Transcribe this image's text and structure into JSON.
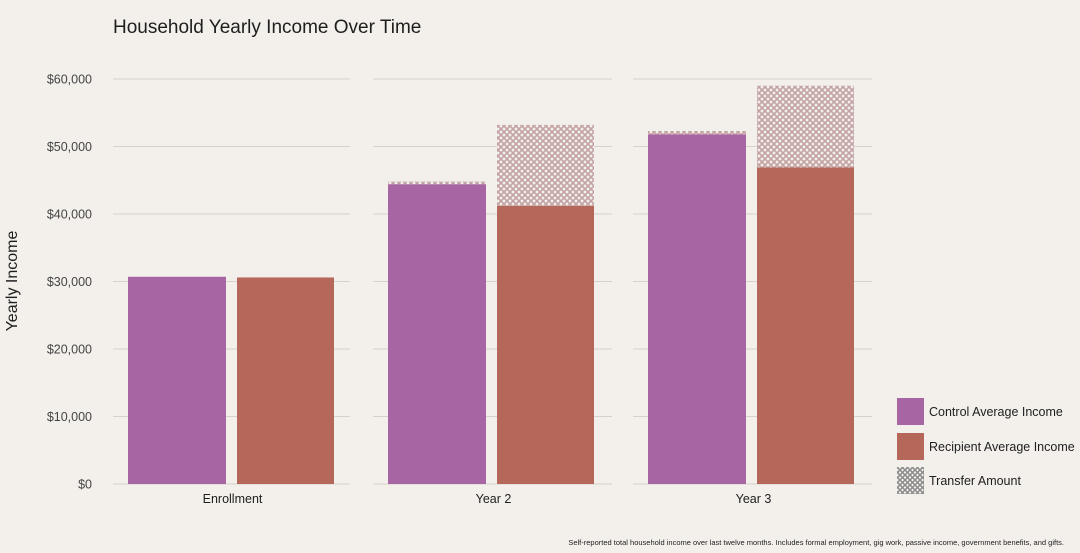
{
  "chart_data": {
    "type": "bar",
    "title": "Household Yearly Income Over Time",
    "ylabel": "Yearly Income",
    "xlabel": "",
    "footnote": "Self-reported total household income over last twelve months. Includes formal employment, gig work, passive income, government benefits, and gifts.",
    "ylim": [
      0,
      60000
    ],
    "yticks": [
      0,
      10000,
      20000,
      30000,
      40000,
      50000,
      60000
    ],
    "ytick_labels": [
      "$0",
      "$10,000",
      "$20,000",
      "$30,000",
      "$40,000",
      "$50,000",
      "$60,000"
    ],
    "categories": [
      "Enrollment",
      "Year 2",
      "Year 3"
    ],
    "series": [
      {
        "name": "Control Average Income",
        "values": [
          30700,
          44400,
          51800
        ],
        "transfer": [
          0,
          400,
          500
        ]
      },
      {
        "name": "Recipient Average Income",
        "values": [
          30600,
          41200,
          46900
        ],
        "transfer": [
          0,
          12000,
          12100
        ]
      }
    ],
    "legend": {
      "position": "right",
      "entries": [
        "Control Average Income",
        "Recipient Average Income",
        "Transfer Amount"
      ]
    },
    "colors": {
      "control": "#a865a4",
      "recipient": "#b5685a",
      "transfer_pattern": "#c2a2a2",
      "grid": "#d6d1cc",
      "background": "#f3f0ec"
    },
    "grid": true
  }
}
